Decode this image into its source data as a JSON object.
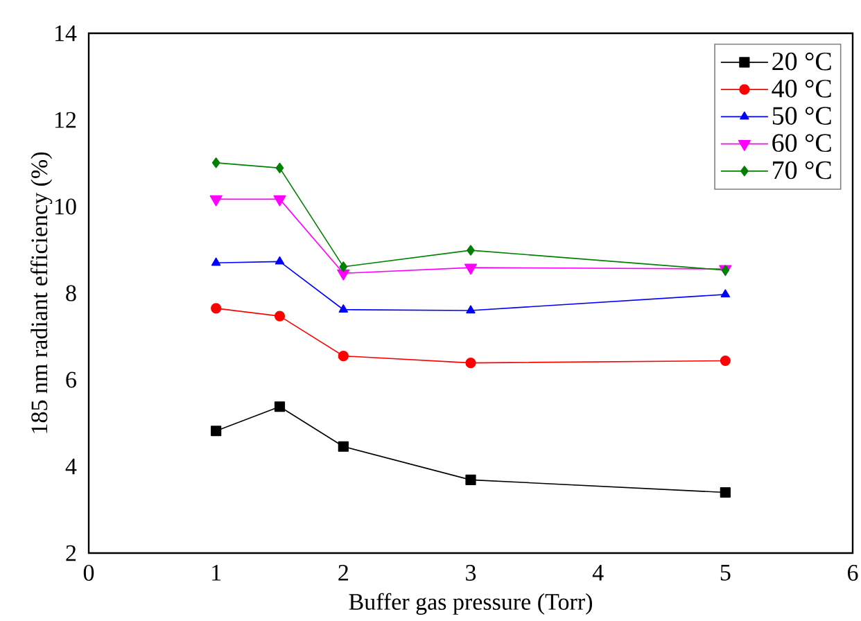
{
  "chart_data": {
    "type": "line",
    "xlabel": "Buffer gas pressure (Torr)",
    "ylabel": "185 nm radiant efficiency (%)",
    "x": [
      1,
      1.5,
      2,
      3,
      5
    ],
    "series": [
      {
        "name": "20 °C",
        "color": "#000000",
        "marker": "square",
        "values": [
          4.82,
          5.38,
          4.46,
          3.69,
          3.4
        ]
      },
      {
        "name": "40 °C",
        "color": "#ff0000",
        "marker": "circle",
        "values": [
          7.65,
          7.47,
          6.55,
          6.39,
          6.44
        ]
      },
      {
        "name": "50 °C",
        "color": "#0000ff",
        "marker": "triangle",
        "values": [
          8.7,
          8.73,
          7.62,
          7.6,
          7.97
        ]
      },
      {
        "name": "60 °C",
        "color": "#ff00ff",
        "marker": "triangle-down",
        "values": [
          10.17,
          10.17,
          8.46,
          8.59,
          8.56
        ]
      },
      {
        "name": "70 °C",
        "color": "#008000",
        "marker": "diamond",
        "values": [
          11.01,
          10.89,
          8.61,
          8.99,
          8.53
        ]
      }
    ],
    "xlim": [
      0,
      6
    ],
    "xticks": [
      0,
      1,
      2,
      3,
      4,
      5,
      6
    ],
    "ylim": [
      2,
      14
    ],
    "yticks": [
      2,
      4,
      6,
      8,
      10,
      12,
      14
    ],
    "grid": false,
    "legend": "top right",
    "line_style": "solid"
  }
}
